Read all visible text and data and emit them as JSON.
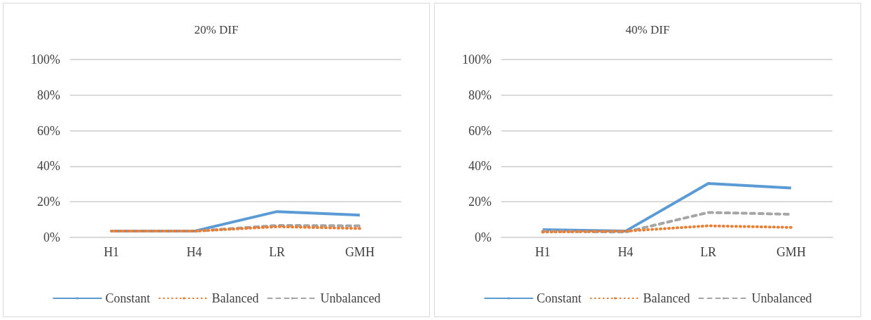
{
  "chart_data": [
    {
      "type": "line",
      "title": "20% DIF",
      "categories": [
        "H1",
        "H4",
        "LR",
        "GMH"
      ],
      "series": [
        {
          "name": "Constant",
          "color": "#5b9bd5",
          "line_style": "solid",
          "values": [
            3.5,
            3.5,
            14.5,
            12.5
          ]
        },
        {
          "name": "Balanced",
          "color": "#ed7d31",
          "line_style": "dotted",
          "values": [
            3.5,
            3.5,
            6,
            5
          ]
        },
        {
          "name": "Unbalanced",
          "color": "#a5a5a5",
          "line_style": "dashed",
          "values": [
            3.5,
            3.5,
            6.7,
            6.5
          ]
        }
      ],
      "ylim": [
        0,
        100
      ],
      "yticks": [
        {
          "value": 0,
          "label": "0%"
        },
        {
          "value": 20,
          "label": "20%"
        },
        {
          "value": 40,
          "label": "40%"
        },
        {
          "value": 60,
          "label": "60%"
        },
        {
          "value": 80,
          "label": "80%"
        },
        {
          "value": 100,
          "label": "100%"
        }
      ],
      "grid": "y",
      "legend": "bottom",
      "marker": "none"
    },
    {
      "type": "line",
      "title": "40% DIF",
      "categories": [
        "H1",
        "H4",
        "LR",
        "GMH"
      ],
      "series": [
        {
          "name": "Constant",
          "color": "#5b9bd5",
          "line_style": "solid",
          "values": [
            4.3,
            3.5,
            30.3,
            27.8
          ]
        },
        {
          "name": "Balanced",
          "color": "#ed7d31",
          "line_style": "dotted",
          "values": [
            3,
            3.5,
            6.5,
            5.6
          ]
        },
        {
          "name": "Unbalanced",
          "color": "#a5a5a5",
          "line_style": "dashed",
          "values": [
            3.5,
            3,
            14,
            13
          ]
        }
      ],
      "ylim": [
        0,
        100
      ],
      "yticks": [
        {
          "value": 0,
          "label": "0%"
        },
        {
          "value": 20,
          "label": "20%"
        },
        {
          "value": 40,
          "label": "40%"
        },
        {
          "value": 60,
          "label": "60%"
        },
        {
          "value": 80,
          "label": "80%"
        },
        {
          "value": 100,
          "label": "100%"
        }
      ],
      "grid": "y",
      "legend": "bottom",
      "marker": "none"
    }
  ]
}
